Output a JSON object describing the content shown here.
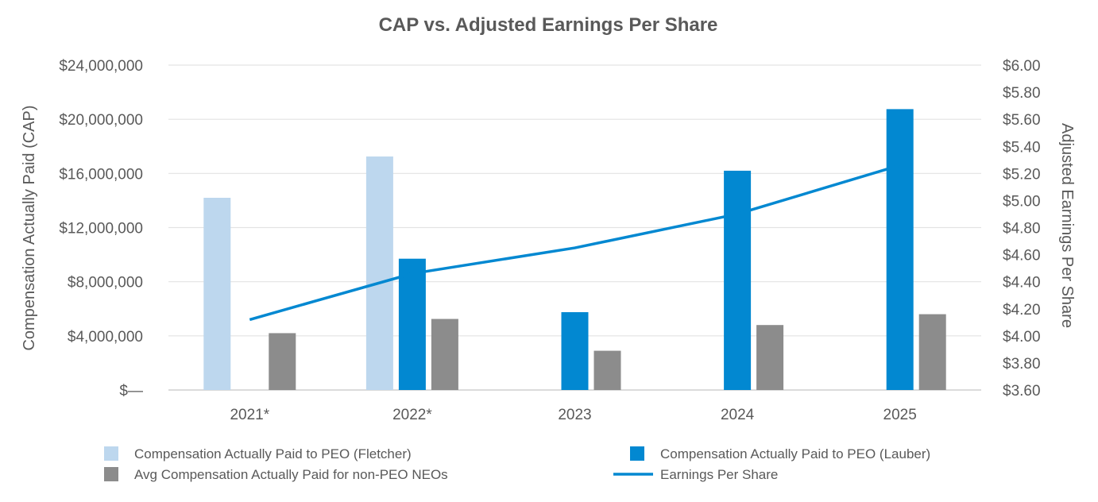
{
  "chart_data": {
    "type": "bar",
    "title": "CAP vs. Adjusted Earnings Per Share",
    "categories": [
      "2021*",
      "2022*",
      "2023",
      "2024",
      "2025"
    ],
    "ylabel": "Compensation Actually Paid (CAP)",
    "y2label": "Adjusted Earnings Per Share",
    "ylim": [
      0,
      24000000
    ],
    "y2lim": [
      3.6,
      6.0
    ],
    "yticks": [
      "$—",
      "$4,000,000",
      "$8,000,000",
      "$12,000,000",
      "$16,000,000",
      "$20,000,000",
      "$24,000,000"
    ],
    "y2ticks": [
      "$3.60",
      "$3.80",
      "$4.00",
      "$4.20",
      "$4.40",
      "$4.60",
      "$4.80",
      "$5.00",
      "$5.20",
      "$5.40",
      "$5.60",
      "$5.80",
      "$6.00"
    ],
    "grid": true,
    "legend_position": "bottom",
    "series": [
      {
        "name": "Compensation Actually Paid to PEO (Fletcher)",
        "type": "bar",
        "axis": "left",
        "color": "#bdd7ee",
        "values": [
          14200000,
          17250000,
          null,
          null,
          null
        ]
      },
      {
        "name": "Compensation Actually Paid to PEO (Lauber)",
        "type": "bar",
        "axis": "left",
        "color": "#0288d1",
        "values": [
          null,
          9700000,
          5750000,
          16200000,
          20750000
        ]
      },
      {
        "name": "Avg Compensation Actually Paid for non-PEO NEOs",
        "type": "bar",
        "axis": "left",
        "color": "#8c8c8c",
        "values": [
          4200000,
          5250000,
          2900000,
          4800000,
          5600000
        ]
      },
      {
        "name": "Earnings Per Share",
        "type": "line",
        "axis": "right",
        "color": "#0288d1",
        "values": [
          4.12,
          4.46,
          4.65,
          4.9,
          5.26
        ]
      }
    ]
  }
}
